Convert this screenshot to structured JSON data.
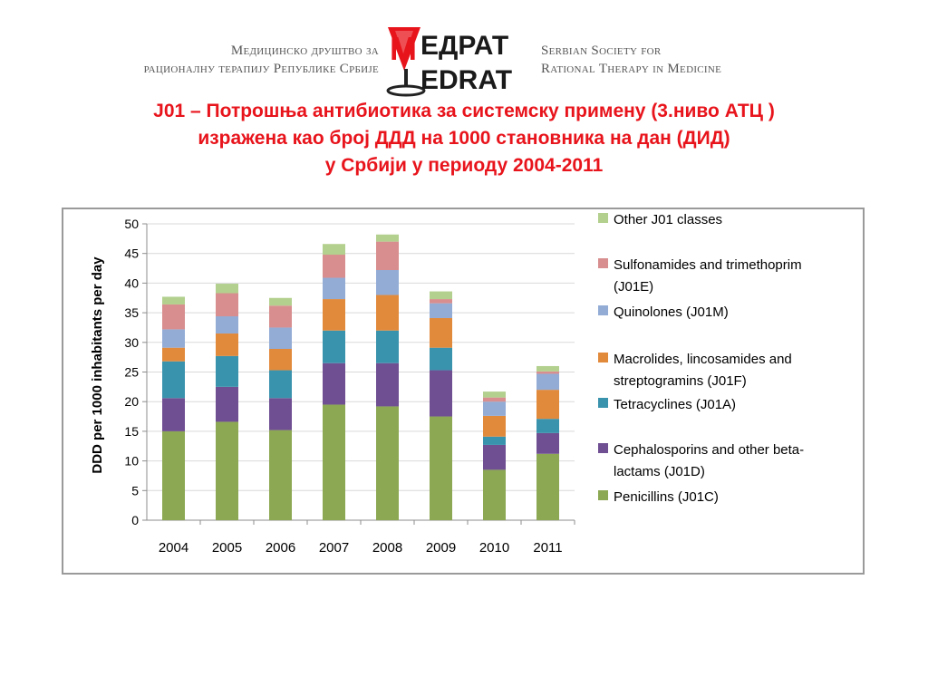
{
  "header": {
    "org_sr_line1": "Медицинско друштво за",
    "org_sr_line2": "рационалну терапију Републике Србије",
    "org_en_line1": "Serbian Society for",
    "org_en_line2": "Rational Therapy in Medicine",
    "logo_text_top": "ЕДРАТ",
    "logo_text_bottom": "EDRAT",
    "logo_letter": "M"
  },
  "title": {
    "line1": "J01 – Потрошња антибиотика за системску примену  (3.ниво АТЦ )",
    "line2": "изражена као број ДДД на 1000 становника на дан (ДИД)",
    "line3": "у Србији у периоду 2004-2011"
  },
  "colors": {
    "title": "#e8141c",
    "penicillins": "#8ca852",
    "cephalosporins": "#6f4f92",
    "tetracyclines": "#3a93ad",
    "macrolides": "#e28a3c",
    "quinolones": "#93acd6",
    "sulfonamides": "#d88e8e",
    "other": "#b3d08e"
  },
  "chart_data": {
    "type": "bar",
    "stacked": true,
    "categories": [
      "2004",
      "2005",
      "2006",
      "2007",
      "2008",
      "2009",
      "2010",
      "2011"
    ],
    "ylabel": "DDD per 1000 inhabitants per day",
    "ylim": [
      0,
      50
    ],
    "yticks": [
      "0",
      "5",
      "10",
      "15",
      "20",
      "25",
      "30",
      "35",
      "40",
      "45",
      "50"
    ],
    "legend_position": "right",
    "series": [
      {
        "name": "Penicillins (J01C)",
        "key": "penicillins",
        "values": [
          15.0,
          16.6,
          15.2,
          19.5,
          19.2,
          17.5,
          8.5,
          11.2
        ]
      },
      {
        "name": "Cephalosporins and other beta-lactams (J01D)",
        "key": "cephalosporins",
        "values": [
          5.6,
          5.9,
          5.4,
          7.0,
          7.3,
          7.8,
          4.2,
          3.5
        ]
      },
      {
        "name": "Tetracyclines (J01A)",
        "key": "tetracyclines",
        "values": [
          6.2,
          5.2,
          4.7,
          5.5,
          5.5,
          3.8,
          1.4,
          2.4
        ]
      },
      {
        "name": "Macrolides, lincosamides and streptogramins (J01F)",
        "key": "macrolides",
        "values": [
          2.3,
          3.8,
          3.6,
          5.3,
          6.0,
          5.0,
          3.5,
          4.9
        ]
      },
      {
        "name": "Quinolones (J01M)",
        "key": "quinolones",
        "values": [
          3.1,
          2.9,
          3.6,
          3.6,
          4.2,
          2.5,
          2.4,
          2.7
        ]
      },
      {
        "name": "Sulfonamides and trimethoprim (J01E)",
        "key": "sulfonamides",
        "values": [
          4.2,
          3.9,
          3.7,
          3.9,
          4.8,
          0.7,
          0.7,
          0.4
        ]
      },
      {
        "name": "Other J01 classes",
        "key": "other",
        "values": [
          1.3,
          1.6,
          1.3,
          1.8,
          1.2,
          1.3,
          1.0,
          0.9
        ]
      }
    ],
    "legend_entries": [
      {
        "key": "other",
        "lines": [
          "Other J01 classes"
        ]
      },
      {
        "key": "sulfonamides",
        "lines": [
          "Sulfonamides and trimethoprim",
          "(J01E)"
        ]
      },
      {
        "key": "quinolones",
        "lines": [
          "Quinolones (J01M)"
        ]
      },
      {
        "key": "macrolides",
        "lines": [
          "Macrolides, lincosamides and",
          "streptogramins (J01F)"
        ]
      },
      {
        "key": "tetracyclines",
        "lines": [
          "Tetracyclines (J01A)"
        ]
      },
      {
        "key": "cephalosporins",
        "lines": [
          "Cephalosporins and other beta-",
          "lactams (J01D)"
        ]
      },
      {
        "key": "penicillins",
        "lines": [
          "Penicillins (J01C)"
        ]
      }
    ]
  }
}
